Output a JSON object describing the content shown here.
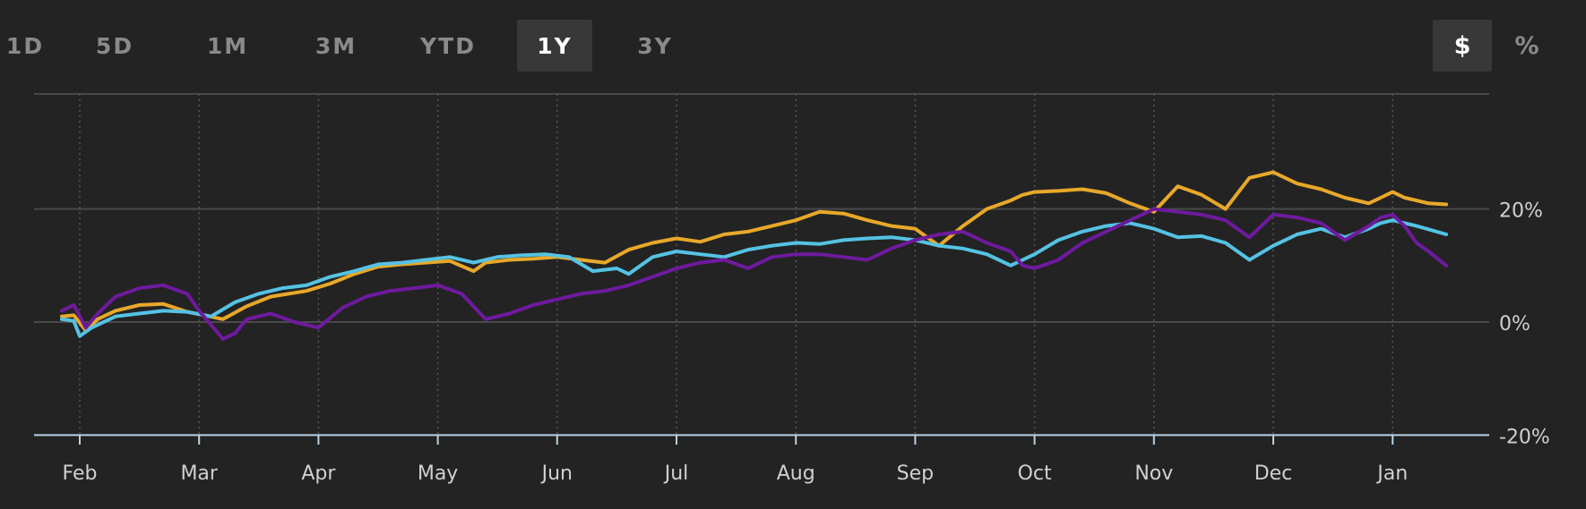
{
  "range_tabs": [
    {
      "label": "1D",
      "active": false
    },
    {
      "label": "5D",
      "active": false
    },
    {
      "label": "1M",
      "active": false
    },
    {
      "label": "3M",
      "active": false
    },
    {
      "label": "YTD",
      "active": false
    },
    {
      "label": "1Y",
      "active": true
    },
    {
      "label": "3Y",
      "active": false
    }
  ],
  "unit_toggle": {
    "dollar_label": "$",
    "percent_label": "%",
    "selected": "$"
  },
  "colors": {
    "background": "#232323",
    "gridline": "#4a4a4a",
    "axis_line": "#b9d2e6",
    "tick_text": "#d0d0d0",
    "orange_series": "#e8a82a",
    "blue_series": "#55c2e4",
    "purple_series": "#6e1a9e"
  },
  "chart_data": {
    "type": "line",
    "title": "",
    "xlabel": "",
    "ylabel": "",
    "x_ticks": [
      "Feb",
      "Mar",
      "Apr",
      "May",
      "Jun",
      "Jul",
      "Aug",
      "Sep",
      "Oct",
      "Nov",
      "Dec",
      "Jan"
    ],
    "y_ticks": [
      "20%",
      "0%",
      "-20%"
    ],
    "y_tick_values": [
      20,
      0,
      -20
    ],
    "ylim": [
      -20,
      40
    ],
    "grid": true,
    "legend": "none",
    "series": [
      {
        "color": "#e8a82a",
        "x": [
          -0.15,
          -0.05,
          0.05,
          0.15,
          0.3,
          0.5,
          0.7,
          0.9,
          1.2,
          1.4,
          1.6,
          1.9,
          2.1,
          2.3,
          2.5,
          2.7,
          2.9,
          3.1,
          3.3,
          3.4,
          3.6,
          3.8,
          4.0,
          4.2,
          4.4,
          4.6,
          4.8,
          5.0,
          5.2,
          5.4,
          5.6,
          5.8,
          6.0,
          6.2,
          6.4,
          6.6,
          6.8,
          7.0,
          7.2,
          7.4,
          7.6,
          7.8,
          7.9,
          8.0,
          8.2,
          8.4,
          8.6,
          8.8,
          9.0,
          9.2,
          9.4,
          9.6,
          9.8,
          9.9,
          10.0,
          10.2,
          10.4,
          10.6,
          10.8,
          10.9,
          11.0,
          11.1,
          11.2,
          11.3,
          11.45
        ],
        "values": [
          1.0,
          1.2,
          -1.5,
          0.5,
          2.0,
          3.0,
          3.2,
          1.8,
          0.5,
          2.8,
          4.5,
          5.5,
          6.8,
          8.5,
          9.8,
          10.2,
          10.5,
          10.8,
          9.0,
          10.5,
          11.0,
          11.2,
          11.5,
          11.0,
          10.5,
          12.8,
          14.0,
          14.8,
          14.2,
          15.5,
          16.0,
          17.0,
          18.0,
          19.5,
          19.2,
          18.0,
          17.0,
          16.5,
          13.5,
          17.0,
          20.0,
          21.5,
          22.5,
          23.0,
          23.2,
          23.5,
          22.8,
          21.0,
          19.5,
          24.0,
          22.5,
          20.0,
          25.5,
          26.0,
          26.5,
          24.5,
          23.5,
          22.0,
          21.0,
          22.0,
          23.0,
          22.0,
          21.5,
          21.0,
          20.8
        ]
      },
      {
        "color": "#55c2e4",
        "x": [
          -0.15,
          -0.05,
          0.0,
          0.1,
          0.3,
          0.5,
          0.7,
          0.9,
          1.1,
          1.3,
          1.5,
          1.7,
          1.9,
          2.1,
          2.3,
          2.5,
          2.7,
          2.9,
          3.1,
          3.3,
          3.5,
          3.7,
          3.9,
          4.1,
          4.3,
          4.5,
          4.6,
          4.8,
          5.0,
          5.2,
          5.4,
          5.6,
          5.8,
          6.0,
          6.2,
          6.4,
          6.6,
          6.8,
          7.0,
          7.2,
          7.4,
          7.6,
          7.8,
          7.9,
          8.0,
          8.2,
          8.4,
          8.6,
          8.8,
          9.0,
          9.2,
          9.4,
          9.6,
          9.8,
          10.0,
          10.1,
          10.2,
          10.4,
          10.6,
          10.8,
          10.9,
          11.0,
          11.2,
          11.45
        ],
        "values": [
          0.5,
          0.2,
          -2.5,
          -1.0,
          1.0,
          1.5,
          2.0,
          1.8,
          1.0,
          3.5,
          5.0,
          6.0,
          6.5,
          8.0,
          9.0,
          10.2,
          10.5,
          11.0,
          11.5,
          10.5,
          11.5,
          11.8,
          12.0,
          11.5,
          9.0,
          9.5,
          8.5,
          11.5,
          12.5,
          12.0,
          11.5,
          12.8,
          13.5,
          14.0,
          13.8,
          14.5,
          14.8,
          15.0,
          14.5,
          13.5,
          13.0,
          12.0,
          10.0,
          11.0,
          12.0,
          14.5,
          16.0,
          17.0,
          17.5,
          16.5,
          15.0,
          15.2,
          14.0,
          11.0,
          13.5,
          14.5,
          15.5,
          16.5,
          15.0,
          16.5,
          17.5,
          18.0,
          17.0,
          15.5
        ]
      },
      {
        "color": "#6e1a9e",
        "x": [
          -0.15,
          -0.05,
          0.05,
          0.15,
          0.3,
          0.5,
          0.7,
          0.9,
          1.0,
          1.1,
          1.2,
          1.3,
          1.4,
          1.6,
          1.8,
          2.0,
          2.2,
          2.4,
          2.6,
          2.8,
          3.0,
          3.2,
          3.4,
          3.6,
          3.8,
          4.0,
          4.2,
          4.4,
          4.6,
          4.8,
          5.0,
          5.2,
          5.4,
          5.6,
          5.8,
          6.0,
          6.2,
          6.4,
          6.6,
          6.8,
          7.0,
          7.2,
          7.4,
          7.6,
          7.8,
          7.9,
          8.0,
          8.2,
          8.4,
          8.6,
          8.8,
          9.0,
          9.2,
          9.4,
          9.6,
          9.8,
          10.0,
          10.2,
          10.4,
          10.6,
          10.8,
          10.9,
          11.0,
          11.1,
          11.2,
          11.3,
          11.45
        ],
        "values": [
          2.0,
          3.0,
          -1.0,
          1.5,
          4.5,
          6.0,
          6.5,
          5.0,
          2.0,
          -0.5,
          -3.0,
          -2.0,
          0.5,
          1.5,
          0.0,
          -1.0,
          2.5,
          4.5,
          5.5,
          6.0,
          6.5,
          5.0,
          0.5,
          1.5,
          3.0,
          4.0,
          5.0,
          5.5,
          6.5,
          8.0,
          9.5,
          10.5,
          11.0,
          9.5,
          11.5,
          12.0,
          12.0,
          11.5,
          11.0,
          13.0,
          14.5,
          15.5,
          16.0,
          14.0,
          12.5,
          10.0,
          9.5,
          11.0,
          14.0,
          16.0,
          18.0,
          20.0,
          19.5,
          19.0,
          18.0,
          15.0,
          19.0,
          18.5,
          17.5,
          14.5,
          17.0,
          18.5,
          19.0,
          17.0,
          14.0,
          12.5,
          10.0
        ]
      }
    ]
  }
}
